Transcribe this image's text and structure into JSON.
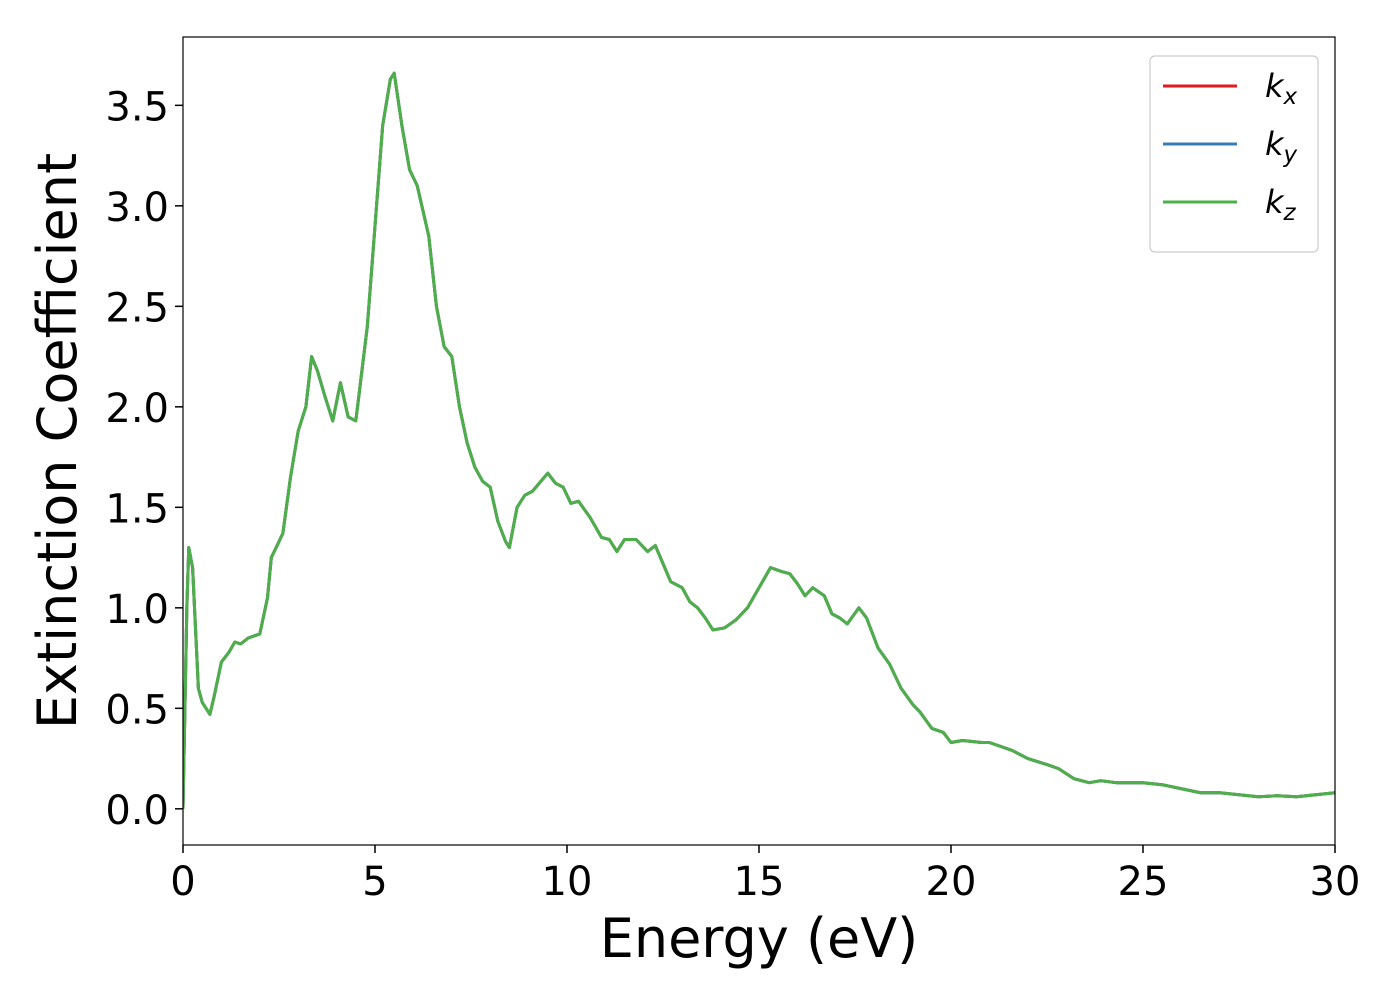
{
  "chart_data": {
    "type": "line",
    "xlabel": "Energy (eV)",
    "ylabel": "Extinction Coefficient",
    "x": [
      0,
      0.1,
      0.15,
      0.25,
      0.4,
      0.5,
      0.6,
      0.7,
      0.8,
      1.0,
      1.2,
      1.35,
      1.5,
      1.7,
      2.0,
      2.2,
      2.3,
      2.6,
      2.8,
      3.0,
      3.2,
      3.35,
      3.5,
      3.7,
      3.9,
      4.1,
      4.3,
      4.5,
      4.8,
      5.0,
      5.2,
      5.4,
      5.5,
      5.7,
      5.9,
      6.1,
      6.4,
      6.6,
      6.8,
      7.0,
      7.2,
      7.4,
      7.6,
      7.8,
      8.0,
      8.2,
      8.4,
      8.5,
      8.7,
      8.9,
      9.1,
      9.5,
      9.7,
      9.9,
      10.1,
      10.3,
      10.6,
      10.9,
      11.1,
      11.3,
      11.5,
      11.8,
      12.1,
      12.3,
      12.5,
      12.7,
      13.0,
      13.2,
      13.4,
      13.6,
      13.8,
      14.1,
      14.4,
      14.7,
      15.0,
      15.3,
      15.6,
      15.8,
      16.0,
      16.2,
      16.4,
      16.7,
      16.9,
      17.1,
      17.3,
      17.6,
      17.8,
      18.1,
      18.4,
      18.7,
      19.0,
      19.2,
      19.5,
      19.8,
      20.0,
      20.3,
      20.8,
      21.0,
      21.3,
      21.6,
      22.0,
      22.5,
      22.8,
      23.2,
      23.6,
      23.9,
      24.3,
      25.0,
      25.5,
      26.0,
      26.5,
      27.0,
      27.5,
      28.0,
      28.5,
      29.0,
      29.5,
      30.0
    ],
    "series": [
      {
        "name": "kx",
        "color": "#e41a1c",
        "values": [
          0,
          1.0,
          1.3,
          1.2,
          0.6,
          0.53,
          0.5,
          0.47,
          0.55,
          0.73,
          0.78,
          0.83,
          0.82,
          0.85,
          0.87,
          1.05,
          1.25,
          1.37,
          1.65,
          1.88,
          2.0,
          2.25,
          2.18,
          2.05,
          1.93,
          2.12,
          1.95,
          1.93,
          2.4,
          2.9,
          3.4,
          3.63,
          3.66,
          3.4,
          3.18,
          3.1,
          2.85,
          2.5,
          2.3,
          2.25,
          2.0,
          1.82,
          1.7,
          1.63,
          1.6,
          1.43,
          1.33,
          1.3,
          1.5,
          1.56,
          1.58,
          1.67,
          1.62,
          1.6,
          1.52,
          1.53,
          1.45,
          1.35,
          1.34,
          1.28,
          1.34,
          1.34,
          1.28,
          1.31,
          1.22,
          1.13,
          1.1,
          1.03,
          1.0,
          0.95,
          0.89,
          0.9,
          0.94,
          1.0,
          1.1,
          1.2,
          1.18,
          1.17,
          1.12,
          1.06,
          1.1,
          1.06,
          0.97,
          0.95,
          0.92,
          1.0,
          0.95,
          0.8,
          0.72,
          0.6,
          0.52,
          0.48,
          0.4,
          0.38,
          0.33,
          0.34,
          0.33,
          0.33,
          0.31,
          0.29,
          0.25,
          0.22,
          0.2,
          0.15,
          0.13,
          0.14,
          0.13,
          0.13,
          0.12,
          0.1,
          0.08,
          0.08,
          0.07,
          0.06,
          0.065,
          0.06,
          0.07,
          0.08
        ]
      },
      {
        "name": "ky",
        "color": "#377eb8",
        "values": [
          0,
          1.0,
          1.3,
          1.2,
          0.6,
          0.53,
          0.5,
          0.47,
          0.55,
          0.73,
          0.78,
          0.83,
          0.82,
          0.85,
          0.87,
          1.05,
          1.25,
          1.37,
          1.65,
          1.88,
          2.0,
          2.25,
          2.18,
          2.05,
          1.93,
          2.12,
          1.95,
          1.93,
          2.4,
          2.9,
          3.4,
          3.63,
          3.66,
          3.4,
          3.18,
          3.1,
          2.85,
          2.5,
          2.3,
          2.25,
          2.0,
          1.82,
          1.7,
          1.63,
          1.6,
          1.43,
          1.33,
          1.3,
          1.5,
          1.56,
          1.58,
          1.67,
          1.62,
          1.6,
          1.52,
          1.53,
          1.45,
          1.35,
          1.34,
          1.28,
          1.34,
          1.34,
          1.28,
          1.31,
          1.22,
          1.13,
          1.1,
          1.03,
          1.0,
          0.95,
          0.89,
          0.9,
          0.94,
          1.0,
          1.1,
          1.2,
          1.18,
          1.17,
          1.12,
          1.06,
          1.1,
          1.06,
          0.97,
          0.95,
          0.92,
          1.0,
          0.95,
          0.8,
          0.72,
          0.6,
          0.52,
          0.48,
          0.4,
          0.38,
          0.33,
          0.34,
          0.33,
          0.33,
          0.31,
          0.29,
          0.25,
          0.22,
          0.2,
          0.15,
          0.13,
          0.14,
          0.13,
          0.13,
          0.12,
          0.1,
          0.08,
          0.08,
          0.07,
          0.06,
          0.065,
          0.06,
          0.07,
          0.08
        ]
      },
      {
        "name": "kz",
        "color": "#4daf4a",
        "values": [
          0,
          1.0,
          1.3,
          1.2,
          0.6,
          0.53,
          0.5,
          0.47,
          0.55,
          0.73,
          0.78,
          0.83,
          0.82,
          0.85,
          0.87,
          1.05,
          1.25,
          1.37,
          1.65,
          1.88,
          2.0,
          2.25,
          2.18,
          2.05,
          1.93,
          2.12,
          1.95,
          1.93,
          2.4,
          2.9,
          3.4,
          3.63,
          3.66,
          3.4,
          3.18,
          3.1,
          2.85,
          2.5,
          2.3,
          2.25,
          2.0,
          1.82,
          1.7,
          1.63,
          1.6,
          1.43,
          1.33,
          1.3,
          1.5,
          1.56,
          1.58,
          1.67,
          1.62,
          1.6,
          1.52,
          1.53,
          1.45,
          1.35,
          1.34,
          1.28,
          1.34,
          1.34,
          1.28,
          1.31,
          1.22,
          1.13,
          1.1,
          1.03,
          1.0,
          0.95,
          0.89,
          0.9,
          0.94,
          1.0,
          1.1,
          1.2,
          1.18,
          1.17,
          1.12,
          1.06,
          1.1,
          1.06,
          0.97,
          0.95,
          0.92,
          1.0,
          0.95,
          0.8,
          0.72,
          0.6,
          0.52,
          0.48,
          0.4,
          0.38,
          0.33,
          0.34,
          0.33,
          0.33,
          0.31,
          0.29,
          0.25,
          0.22,
          0.2,
          0.15,
          0.13,
          0.14,
          0.13,
          0.13,
          0.12,
          0.1,
          0.08,
          0.08,
          0.07,
          0.06,
          0.065,
          0.06,
          0.07,
          0.08
        ]
      }
    ],
    "xlim": [
      0,
      30
    ],
    "xticks": [
      0,
      5,
      10,
      15,
      20,
      25,
      30
    ],
    "ylim": [
      -0.18,
      3.84
    ],
    "yticks": [
      {
        "value": 0,
        "label": "0.0"
      },
      0.5,
      {
        "value": 1,
        "label": "1.0"
      },
      1.5,
      {
        "value": 2,
        "label": "2.0"
      },
      2.5,
      {
        "value": 3,
        "label": "3.0"
      },
      3.5
    ],
    "grid": false,
    "legend": "upper right"
  }
}
